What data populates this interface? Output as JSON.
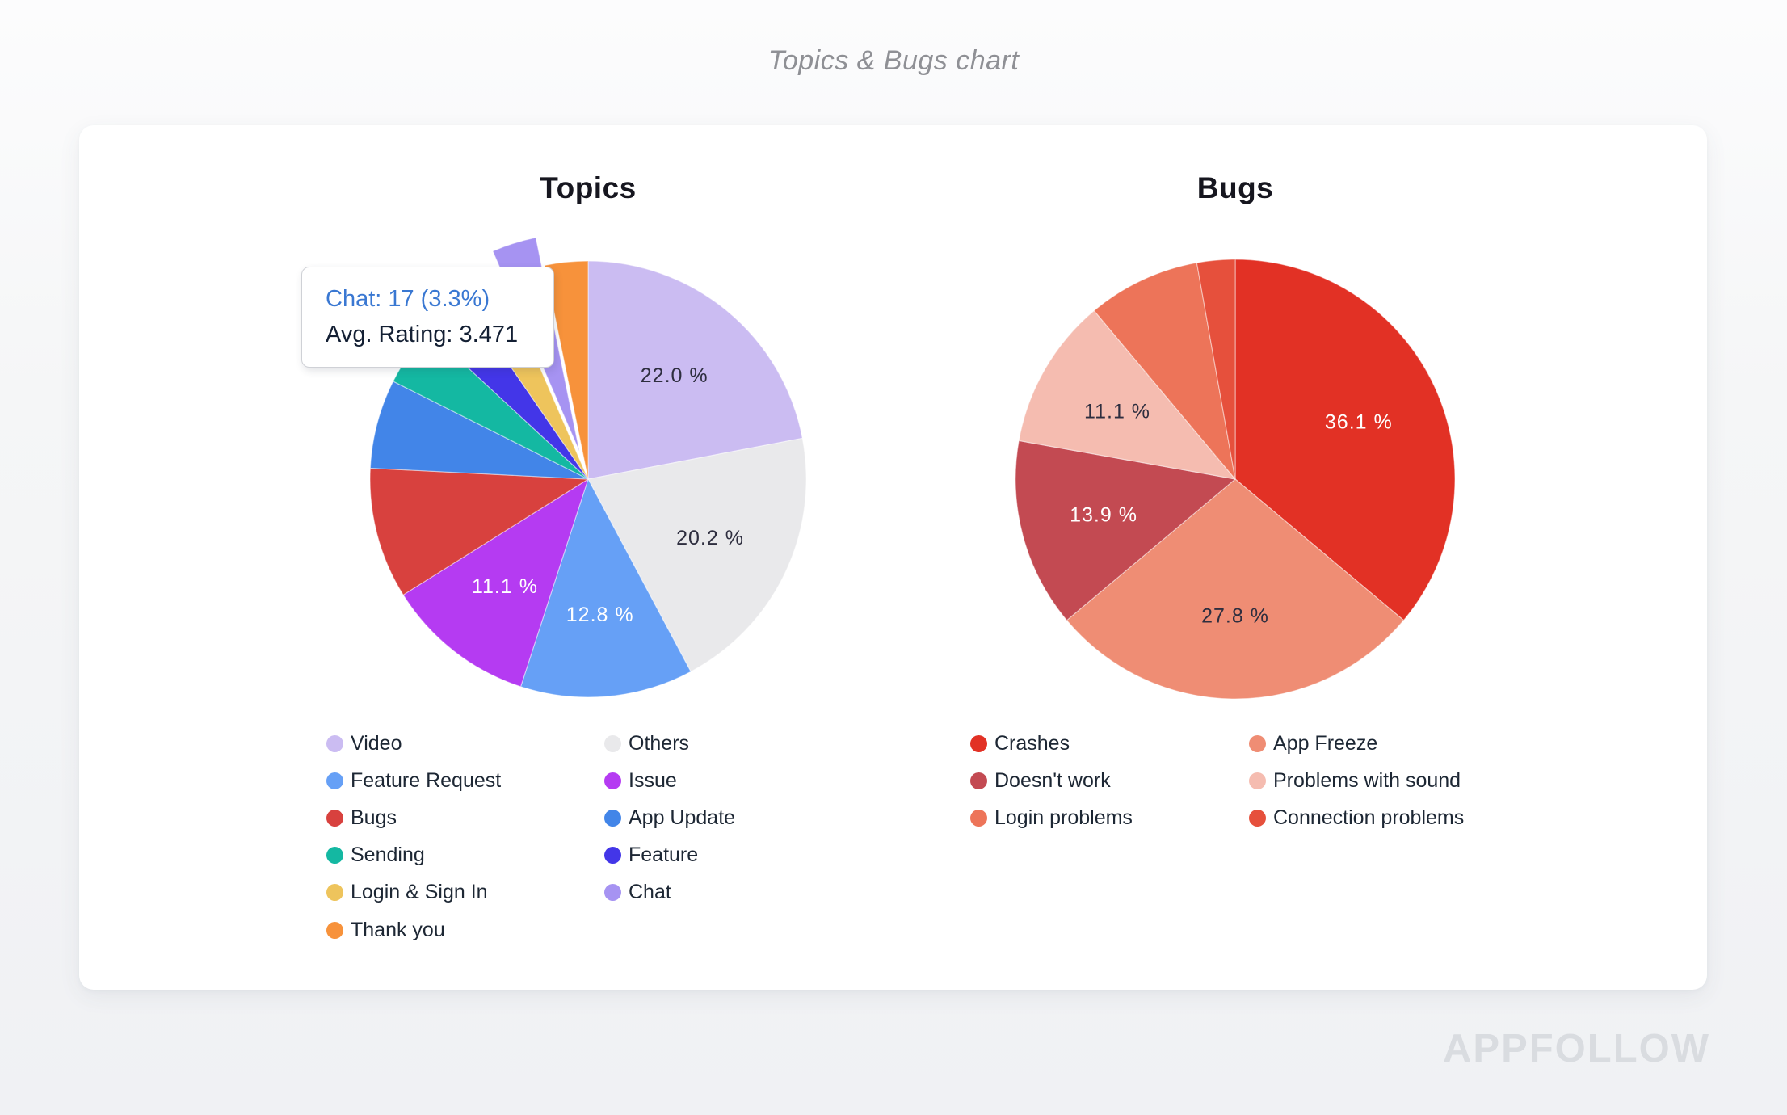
{
  "page": {
    "title": "Topics & Bugs chart",
    "watermark": "APPFOLLOW"
  },
  "tooltip": {
    "line1": "Chat: 17 (3.3%)",
    "line2": "Avg. Rating: 3.471"
  },
  "chart_data": [
    {
      "type": "pie",
      "title": "Topics",
      "value_unit": "percent",
      "legend_position": "bottom-two-columns",
      "slices": [
        {
          "name": "Video",
          "value": 22.0,
          "label": "22.0 %",
          "color": "#cbbcf2"
        },
        {
          "name": "Others",
          "value": 20.2,
          "label": "20.2 %",
          "color": "#e9e9eb"
        },
        {
          "name": "Feature Request",
          "value": 12.8,
          "label": "12.8 %",
          "color": "#66a0f6"
        },
        {
          "name": "Issue",
          "value": 11.1,
          "label": "11.1 %",
          "color": "#b53bf2"
        },
        {
          "name": "Bugs",
          "value": 9.7,
          "label": "",
          "color": "#d8413e"
        },
        {
          "name": "App Update",
          "value": 6.6,
          "label": "",
          "color": "#4285e8"
        },
        {
          "name": "Sending",
          "value": 4.5,
          "label": "",
          "color": "#14b8a2"
        },
        {
          "name": "Feature",
          "value": 3.5,
          "label": "",
          "color": "#4336e8"
        },
        {
          "name": "Login & Sign In",
          "value": 3.1,
          "label": "",
          "color": "#eec45c"
        },
        {
          "name": "Chat",
          "value": 3.3,
          "label": "",
          "color": "#a693f2",
          "pulled": true,
          "count": 17,
          "avg_rating": 3.471
        },
        {
          "name": "Thank you",
          "value": 3.2,
          "label": "",
          "color": "#f7923b"
        }
      ],
      "legend_columns": [
        [
          "Video",
          "Feature Request",
          "Bugs",
          "Sending",
          "Login & Sign In",
          "Thank you"
        ],
        [
          "Others",
          "Issue",
          "App Update",
          "Feature",
          "Chat"
        ]
      ]
    },
    {
      "type": "pie",
      "title": "Bugs",
      "value_unit": "percent",
      "legend_position": "bottom-two-columns",
      "slices": [
        {
          "name": "Crashes",
          "value": 36.1,
          "label": "36.1 %",
          "color": "#e23125"
        },
        {
          "name": "App Freeze",
          "value": 27.8,
          "label": "27.8 %",
          "color": "#ef8d74"
        },
        {
          "name": "Doesn't work",
          "value": 13.9,
          "label": "13.9 %",
          "color": "#c34a52"
        },
        {
          "name": "Problems with sound",
          "value": 11.1,
          "label": "11.1 %",
          "color": "#f5bcb0"
        },
        {
          "name": "Login problems",
          "value": 8.3,
          "label": "",
          "color": "#ed7459"
        },
        {
          "name": "Connection problems",
          "value": 2.8,
          "label": "",
          "color": "#e6503c"
        }
      ],
      "legend_columns": [
        [
          "Crashes",
          "Doesn't work",
          "Login problems"
        ],
        [
          "App Freeze",
          "Problems with sound",
          "Connection problems"
        ]
      ]
    }
  ]
}
